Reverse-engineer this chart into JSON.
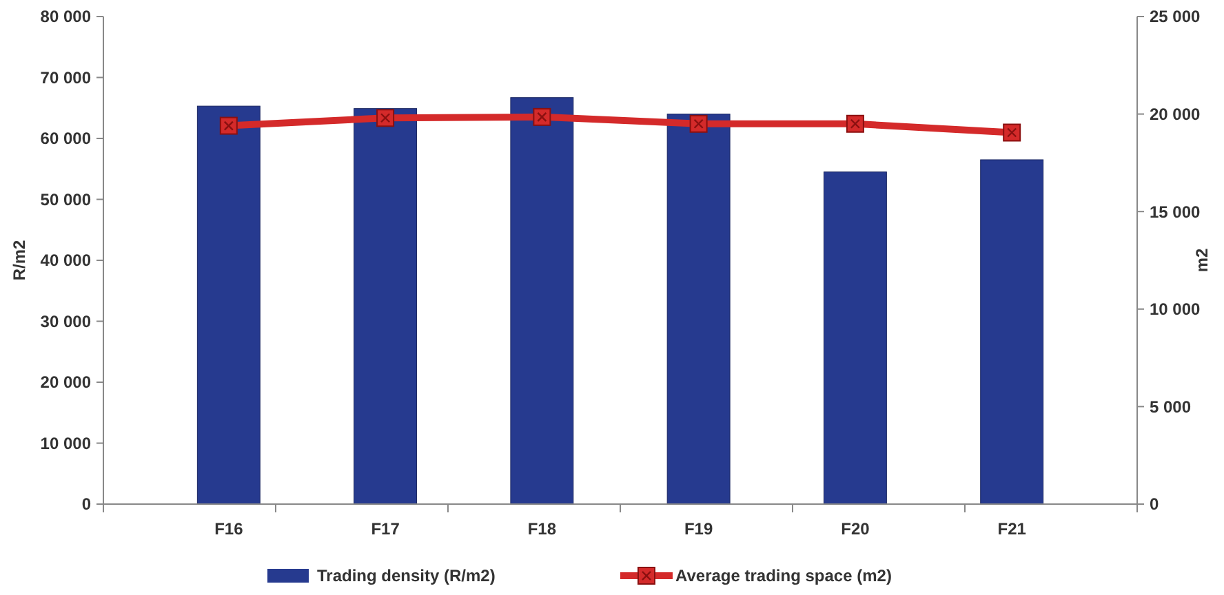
{
  "chart_data": {
    "type": "bar",
    "categories": [
      "F16",
      "F17",
      "F18",
      "F19",
      "F20",
      "F21"
    ],
    "series": [
      {
        "name": "Trading density (R/m2)",
        "color": "#263a8f",
        "values": [
          65300,
          64900,
          66700,
          64000,
          54500,
          56500
        ]
      },
      {
        "name": "Average trading space (m2)",
        "type": "line",
        "axis": "y2",
        "color": "#d42a2a",
        "values": [
          19400,
          19800,
          19850,
          19500,
          19500,
          19050
        ]
      }
    ],
    "ylabel": "R/m2",
    "y2label": "m2",
    "ylim": [
      0,
      80000
    ],
    "yticks": [
      0,
      {
        "value": 10000,
        "label": "10 000"
      },
      {
        "value": 20000,
        "label": "20 000"
      },
      {
        "value": 30000,
        "label": "30 000"
      },
      {
        "value": 40000,
        "label": "40 000"
      },
      {
        "value": 50000,
        "label": "50 000"
      },
      {
        "value": 60000,
        "label": "60 000"
      },
      {
        "value": 70000,
        "label": "70 000"
      },
      {
        "value": 80000,
        "label": "80 000"
      }
    ],
    "y2lim": [
      0,
      25000
    ],
    "y2ticks": [
      0,
      {
        "value": 5000,
        "label": "5 000"
      },
      {
        "value": 10000,
        "label": "10 000"
      },
      {
        "value": 15000,
        "label": "15 000"
      },
      {
        "value": 20000,
        "label": "20 000"
      },
      {
        "value": 25000,
        "label": "25 000"
      }
    ],
    "legend": "bottom",
    "marker": "square",
    "line_style": "solid"
  }
}
